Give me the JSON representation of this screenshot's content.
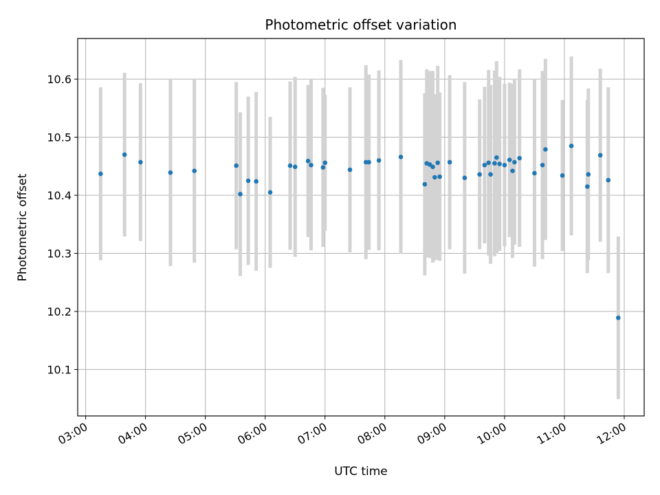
{
  "chart_data": {
    "type": "scatter",
    "title": "Photometric offset variation",
    "xlabel": "UTC time",
    "ylabel": "Photometric offset",
    "x_ticks": [
      "03:00",
      "04:00",
      "05:00",
      "06:00",
      "07:00",
      "08:00",
      "09:00",
      "10:00",
      "11:00",
      "12:00"
    ],
    "y_ticks": [
      "10.1",
      "10.2",
      "10.3",
      "10.4",
      "10.5",
      "10.6"
    ],
    "xlim": [
      "02:52",
      "12:20"
    ],
    "ylim": [
      10.02,
      10.67
    ],
    "grid": true,
    "colors": {
      "point": "#1f77b4",
      "errorbar": "#d3d3d3",
      "grid": "#b0b0b0",
      "axis": "#000000"
    },
    "series": [
      {
        "x": [
          "03:15",
          "03:39",
          "03:55",
          "04:25",
          "04:49",
          "05:31",
          "05:35",
          "05:43",
          "05:51",
          "06:05",
          "06:25",
          "06:30",
          "06:43",
          "06:46",
          "06:58",
          "07:00",
          "07:25",
          "07:41",
          "07:44",
          "07:54",
          "08:16",
          "08:40",
          "08:42",
          "08:45",
          "08:48",
          "08:50",
          "08:53",
          "08:55",
          "09:05",
          "09:20",
          "09:35",
          "09:40",
          "09:44",
          "09:46",
          "09:50",
          "09:52",
          "09:55",
          "10:00",
          "10:05",
          "10:08",
          "10:10",
          "10:15",
          "10:30",
          "10:38",
          "10:41",
          "10:58",
          "11:07",
          "11:23",
          "11:24",
          "11:36",
          "11:44",
          "11:54"
        ],
        "y": [
          10.437,
          10.47,
          10.457,
          10.439,
          10.442,
          10.451,
          10.402,
          10.425,
          10.424,
          10.405,
          10.451,
          10.449,
          10.459,
          10.452,
          10.448,
          10.456,
          10.444,
          10.457,
          10.457,
          10.46,
          10.466,
          10.419,
          10.455,
          10.453,
          10.449,
          10.431,
          10.456,
          10.432,
          10.457,
          10.43,
          10.436,
          10.452,
          10.456,
          10.436,
          10.455,
          10.465,
          10.454,
          10.452,
          10.461,
          10.442,
          10.457,
          10.464,
          10.438,
          10.452,
          10.479,
          10.434,
          10.485,
          10.415,
          10.436,
          10.469,
          10.426,
          10.189
        ],
        "err": [
          0.149,
          0.141,
          0.136,
          0.161,
          0.158,
          0.144,
          0.141,
          0.145,
          0.154,
          0.13,
          0.145,
          0.155,
          0.131,
          0.147,
          0.137,
          0.117,
          0.142,
          0.167,
          0.151,
          0.155,
          0.167,
          0.157,
          0.162,
          0.161,
          0.165,
          0.143,
          0.167,
          0.145,
          0.15,
          0.165,
          0.129,
          0.135,
          0.16,
          0.154,
          0.16,
          0.166,
          0.15,
          0.14,
          0.133,
          0.15,
          0.142,
          0.153,
          0.161,
          0.162,
          0.156,
          0.13,
          0.154,
          0.149,
          0.148,
          0.149,
          0.16,
          0.14
        ]
      }
    ]
  }
}
